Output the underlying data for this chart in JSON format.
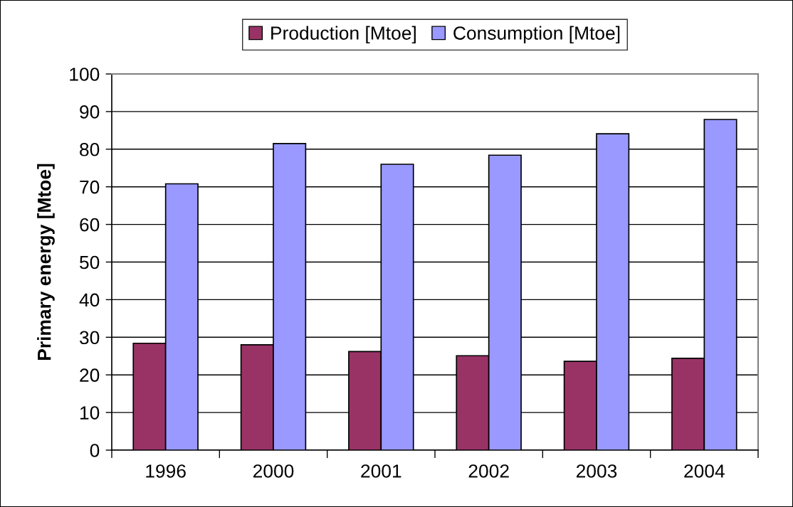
{
  "chart_data": {
    "type": "bar",
    "categories": [
      "1996",
      "2000",
      "2001",
      "2002",
      "2003",
      "2004"
    ],
    "series": [
      {
        "name": "Production [Mtoe]",
        "color": "#993366",
        "values": [
          28.4,
          28.0,
          26.2,
          25.1,
          23.6,
          24.4
        ]
      },
      {
        "name": "Consumption [Mtoe]",
        "color": "#9999ff",
        "values": [
          70.8,
          81.5,
          76.0,
          78.4,
          84.1,
          87.9
        ]
      }
    ],
    "ylabel": "Primary energy [Mtoe]",
    "ylim": [
      0,
      100
    ],
    "yticks": [
      0,
      10,
      20,
      30,
      40,
      50,
      60,
      70,
      80,
      90,
      100
    ],
    "grid": "y",
    "legend": "top"
  }
}
